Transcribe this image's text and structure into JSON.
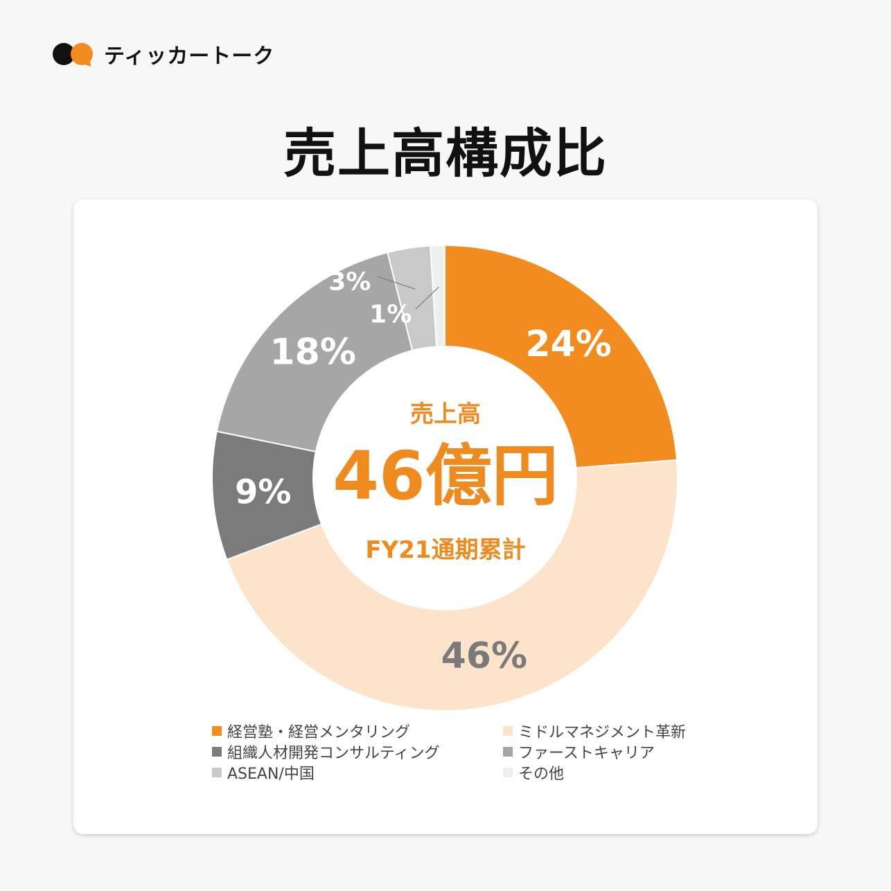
{
  "brand": {
    "name": "ティッカートーク"
  },
  "page": {
    "title": "売上高構成比"
  },
  "chart_data": {
    "type": "pie",
    "title": "",
    "center": {
      "caption": "売上高",
      "value": "46億円",
      "subcaption": "FY21通期累計"
    },
    "series": [
      {
        "name": "経営塾・経営メンタリング",
        "value": 24,
        "label": "24%",
        "color": "#f28c1e",
        "label_color": "#ffffff"
      },
      {
        "name": "ミドルマネジメント革新",
        "value": 46,
        "label": "46%",
        "color": "#fde3c9",
        "label_color": "#7a7a7a"
      },
      {
        "name": "組織人材開発コンサルティング",
        "value": 9,
        "label": "9%",
        "color": "#7b7b7b",
        "label_color": "#ffffff"
      },
      {
        "name": "ファーストキャリア",
        "value": 18,
        "label": "18%",
        "color": "#a6a6a6",
        "label_color": "#ffffff"
      },
      {
        "name": "ASEAN/中国",
        "value": 3,
        "label": "3%",
        "color": "#c9c9c9",
        "label_color": "#ffffff"
      },
      {
        "name": "その他",
        "value": 1,
        "label": "1%",
        "color": "#efefef",
        "label_color": "#ffffff"
      }
    ],
    "legend_position": "bottom"
  }
}
